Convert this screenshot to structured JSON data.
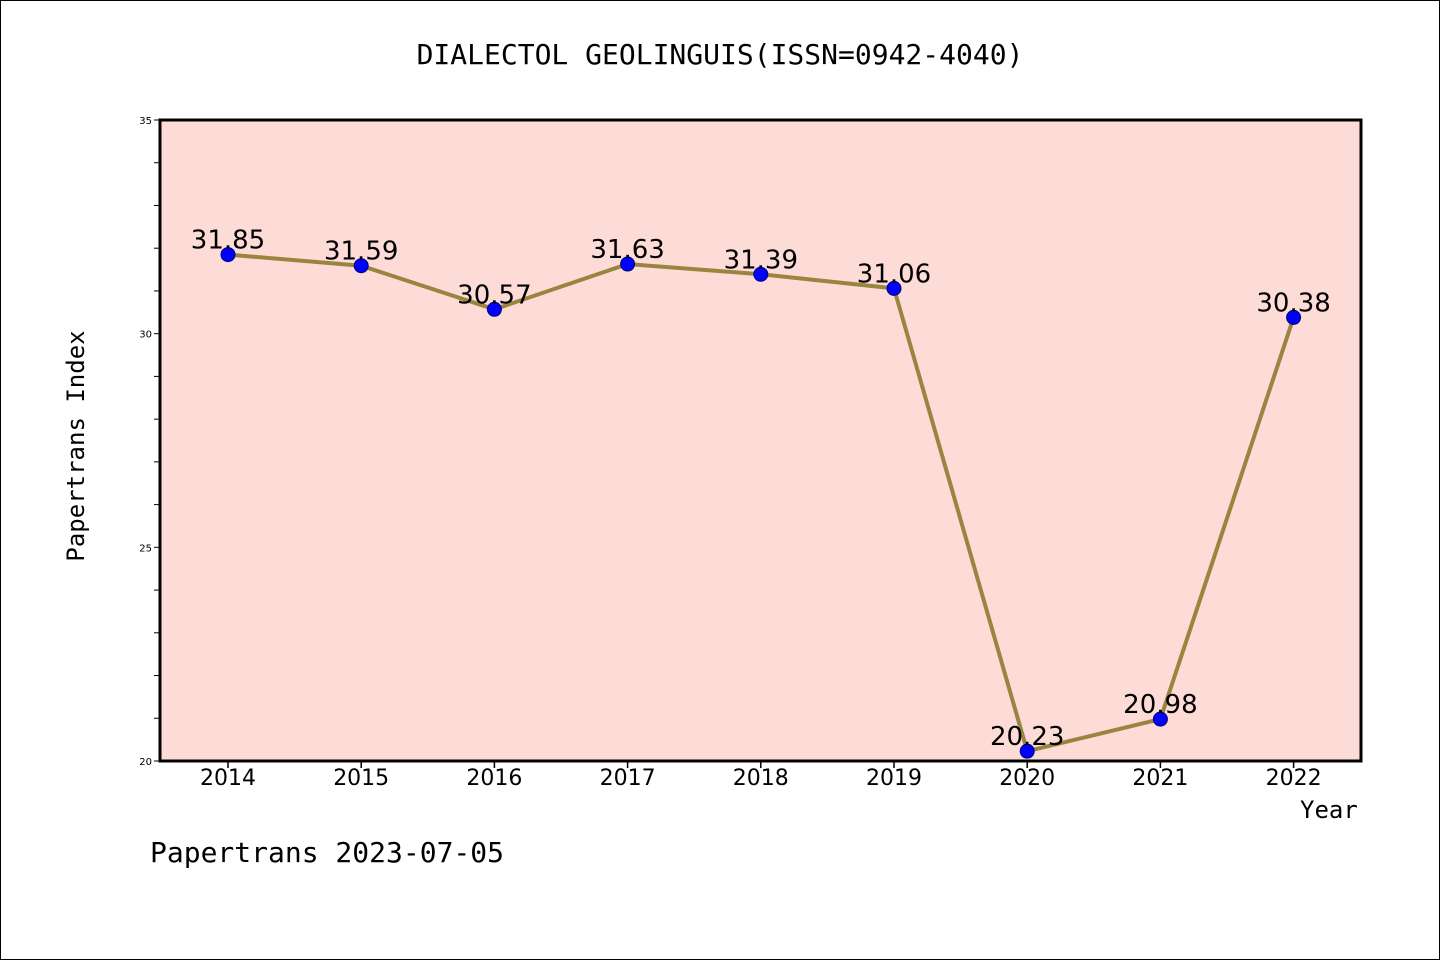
{
  "page": {
    "title": "DIALECTOL GEOLINGUIS(ISSN=0942-4040)",
    "footer": "Papertrans 2023-07-05"
  },
  "colors": {
    "plot_background": "#fddcd8",
    "line": "#9a8540",
    "marker": "#0000ff",
    "axis": "#000000"
  },
  "chart_data": {
    "type": "line",
    "title": "DIALECTOL GEOLINGUIS(ISSN=0942-4040)",
    "xlabel": "Year",
    "ylabel": "Papertrans Index",
    "categories": [
      "2014",
      "2015",
      "2016",
      "2017",
      "2018",
      "2019",
      "2020",
      "2021",
      "2022"
    ],
    "series": [
      {
        "values": [
          31.85,
          31.59,
          30.57,
          31.63,
          31.39,
          31.06,
          20.23,
          20.98,
          30.38
        ],
        "labels": [
          "31.85",
          "31.59",
          "30.57",
          "31.63",
          "31.39",
          "31.06",
          "20.23",
          "20.98",
          "30.38"
        ]
      }
    ],
    "ylim": [
      20,
      35
    ],
    "yticks": [
      20,
      25,
      30,
      35
    ],
    "ytick_labels": [
      "20",
      "25",
      "30",
      "35"
    ],
    "grid": false,
    "legend": "none"
  }
}
